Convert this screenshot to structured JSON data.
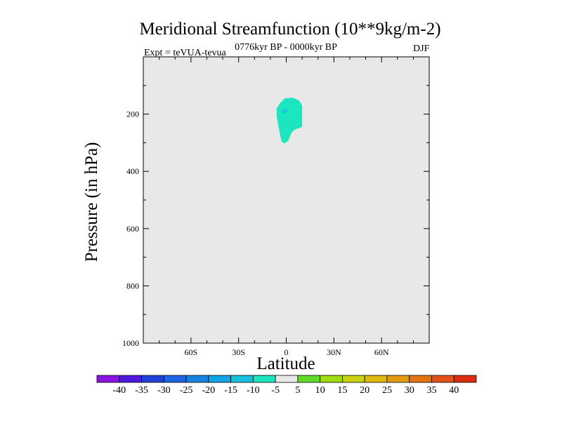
{
  "chart_data": {
    "type": "heatmap",
    "title": "Meridional Streamfunction (10**9kg/m-2)",
    "subtitle_left": "Expt = teVUA-tevua",
    "subtitle_center": "0776kyr BP - 0000kyr BP",
    "subtitle_right": "DJF",
    "xlabel": "Latitude",
    "ylabel": "Pressure (in hPa)",
    "xlim": [
      -90,
      90
    ],
    "ylim": [
      1000,
      0
    ],
    "x_ticks": [
      -60,
      -30,
      0,
      30,
      60
    ],
    "x_tick_labels": [
      "60S",
      "30S",
      "0",
      "30N",
      "60N"
    ],
    "y_ticks": [
      200,
      400,
      600,
      800,
      1000
    ],
    "y_tick_labels": [
      "200",
      "400",
      "600",
      "800",
      "1000"
    ],
    "background_level_color": "#e8e8e8",
    "contour_regions": [
      {
        "name": "-10 to -5",
        "color": "#1ce6c0",
        "points": [
          [
            -6,
            180
          ],
          [
            -4,
            162
          ],
          [
            -1,
            145
          ],
          [
            4,
            143
          ],
          [
            8,
            152
          ],
          [
            10,
            170
          ],
          [
            10,
            245
          ],
          [
            5,
            255
          ],
          [
            3,
            268
          ],
          [
            2,
            282
          ],
          [
            1,
            295
          ],
          [
            -1,
            302
          ],
          [
            -3,
            296
          ],
          [
            -4,
            270
          ],
          [
            -5,
            240
          ],
          [
            -6,
            210
          ]
        ]
      },
      {
        "name": "-15 to -10",
        "color": "#18c8dc",
        "points": [
          [
            -3,
            185
          ],
          [
            -1,
            182
          ],
          [
            1,
            187
          ],
          [
            0,
            196
          ],
          [
            -2,
            196
          ]
        ]
      }
    ],
    "colorbar": {
      "labels": [
        "-40",
        "-35",
        "-30",
        "-25",
        "-20",
        "-15",
        "-10",
        "-5",
        "5",
        "10",
        "15",
        "20",
        "25",
        "30",
        "35",
        "40"
      ],
      "colors": [
        "#8a14e0",
        "#5018dc",
        "#2040d8",
        "#1c64e0",
        "#1884e0",
        "#10a4e4",
        "#18c0dc",
        "#1ce6c0",
        "#e8e8e8",
        "#60dc28",
        "#a0dc10",
        "#c8d010",
        "#e0b810",
        "#e49a10",
        "#e47410",
        "#e4501c",
        "#dc2c10"
      ]
    }
  }
}
